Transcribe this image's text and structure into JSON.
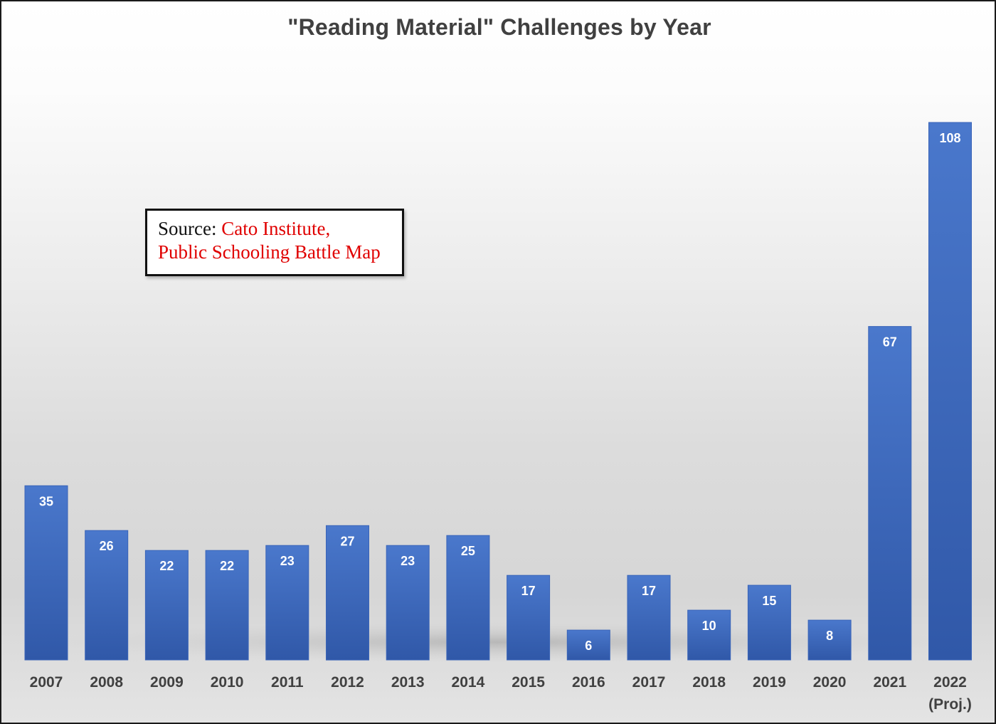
{
  "chart_data": {
    "type": "bar",
    "title": "\"Reading Material\" Challenges by Year",
    "categories": [
      "2007",
      "2008",
      "2009",
      "2010",
      "2011",
      "2012",
      "2013",
      "2014",
      "2015",
      "2016",
      "2017",
      "2018",
      "2019",
      "2020",
      "2021",
      "2022"
    ],
    "category_sublabels": [
      "",
      "",
      "",
      "",
      "",
      "",
      "",
      "",
      "",
      "",
      "",
      "",
      "",
      "",
      "",
      "(Proj.)"
    ],
    "values": [
      35,
      26,
      22,
      22,
      23,
      27,
      23,
      25,
      17,
      6,
      17,
      10,
      15,
      8,
      67,
      108
    ],
    "data_labels": true,
    "ylim": [
      0,
      108
    ],
    "grid": false,
    "bar_color": "#4472c4",
    "bar_color_dark": "#2f55a4"
  },
  "source_note": {
    "prefix": "Source: ",
    "line1": "Cato Institute,",
    "line2": "Public Schooling Battle Map",
    "prefix_color": "#111111",
    "text_color": "#e00000"
  }
}
